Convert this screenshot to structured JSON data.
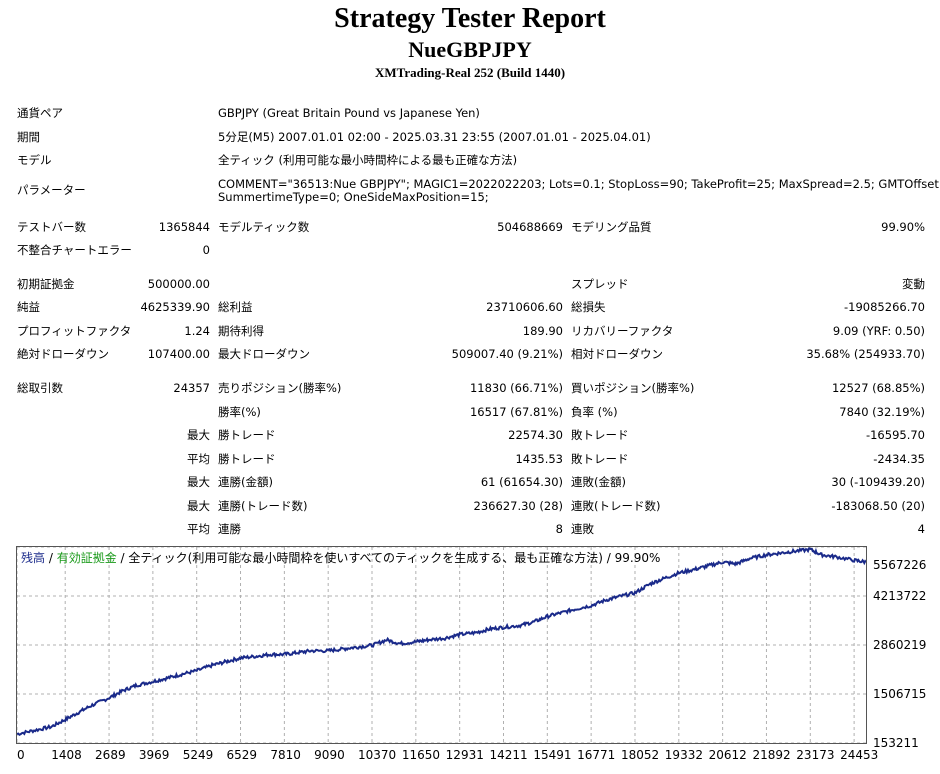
{
  "header": {
    "title": "Strategy Tester Report",
    "subtitle": "NueGBPJPY",
    "broker": "XMTrading-Real 252 (Build 1440)"
  },
  "info": {
    "pair_label": "通貨ペア",
    "pair_value": "GBPJPY (Great Britain Pound vs Japanese Yen)",
    "period_label": "期間",
    "period_value": "5分足(M5) 2007.01.01 02:00 - 2025.03.31 23:55 (2007.01.01 - 2025.04.01)",
    "model_label": "モデル",
    "model_value": "全ティック (利用可能な最小時間枠による最も正確な方法)",
    "params_label": "パラメーター",
    "params_line1": "COMMENT=\"36513:Nue GBPJPY\"; MAGIC1=2022022203; Lots=0.1; StopLoss=90; TakeProfit=25; MaxSpread=2.5; GMTOffset=2;",
    "params_line2": "SummertimeType=0; OneSideMaxPosition=15;"
  },
  "stats": {
    "bars_label": "テストバー数",
    "bars_value": "1365844",
    "ticks_label": "モデルティック数",
    "ticks_value": "504688669",
    "quality_label": "モデリング品質",
    "quality_value": "99.90%",
    "mismatch_label": "不整合チャートエラー",
    "mismatch_value": "0",
    "deposit_label": "初期証拠金",
    "deposit_value": "500000.00",
    "spread_label": "スプレッド",
    "spread_value": "変動",
    "net_label": "純益",
    "net_value": "4625339.90",
    "gross_profit_label": "総利益",
    "gross_profit_value": "23710606.60",
    "gross_loss_label": "総損失",
    "gross_loss_value": "-19085266.70",
    "pf_label": "プロフィットファクタ",
    "pf_value": "1.24",
    "expected_label": "期待利得",
    "expected_value": "189.90",
    "recovery_label": "リカバリーファクタ",
    "recovery_value": "9.09 (YRF: 0.50)",
    "abs_dd_label": "絶対ドローダウン",
    "abs_dd_value": "107400.00",
    "max_dd_label": "最大ドローダウン",
    "max_dd_value": "509007.40 (9.21%)",
    "rel_dd_label": "相対ドローダウン",
    "rel_dd_value": "35.68% (254933.70)",
    "total_trades_label": "総取引数",
    "total_trades_value": "24357",
    "short_label": "売りポジション(勝率%)",
    "short_value": "11830 (66.71%)",
    "long_label": "買いポジション(勝率%)",
    "long_value": "12527 (68.85%)",
    "winrate_label": "勝率(%)",
    "winrate_value": "16517 (67.81%)",
    "lossrate_label": "負率 (%)",
    "lossrate_value": "7840 (32.19%)",
    "max_label_1": "最大",
    "largest_win_label": "勝トレード",
    "largest_win_value": "22574.30",
    "largest_loss_label": "敗トレード",
    "largest_loss_value": "-16595.70",
    "avg_label_1": "平均",
    "avg_win_label": "勝トレード",
    "avg_win_value": "1435.53",
    "avg_loss_label": "敗トレード",
    "avg_loss_value": "-2434.35",
    "max_label_2": "最大",
    "cons_wins_amt_label": "連勝(金額)",
    "cons_wins_amt_value": "61 (61654.30)",
    "cons_loss_amt_label": "連敗(金額)",
    "cons_loss_amt_value": "30 (-109439.20)",
    "max_label_3": "最大",
    "cons_wins_cnt_label": "連勝(トレード数)",
    "cons_wins_cnt_value": "236627.30 (28)",
    "cons_loss_cnt_label": "連敗(トレード数)",
    "cons_loss_cnt_value": "-183068.50 (20)",
    "avg_label_2": "平均",
    "avg_cons_win_label": "連勝",
    "avg_cons_win_value": "8",
    "avg_cons_loss_label": "連敗",
    "avg_cons_loss_value": "4"
  },
  "chart_legend": {
    "balance": "残高",
    "sep1": " / ",
    "equity": "有効証拠金",
    "sep2": " / ",
    "rest": "全ティック(利用可能な最小時間枠を使いすべてのティックを生成する、最も正確な方法) / 99.90%"
  },
  "colors": {
    "balance_line": "#1a2a8a",
    "grid": "#b0b0b0"
  },
  "chart_data": {
    "type": "line",
    "title": "",
    "xlabel": "",
    "ylabel": "",
    "y_ticks": [
      153211,
      1506715,
      2860219,
      4213722,
      5567226
    ],
    "x_ticks": [
      0,
      1408,
      2689,
      3969,
      5249,
      6529,
      7810,
      9090,
      10370,
      11650,
      12931,
      14211,
      15491,
      16771,
      18052,
      19332,
      20612,
      21892,
      23173,
      24453
    ],
    "ylim": [
      153211,
      5567226
    ],
    "xlim": [
      0,
      24800
    ],
    "grid": true,
    "series": [
      {
        "values_x": [
          0,
          500,
          1000,
          1408,
          1800,
          2200,
          2689,
          3100,
          3500,
          3969,
          4400,
          4800,
          5249,
          5700,
          6100,
          6529,
          7000,
          7400,
          7810,
          8200,
          8600,
          9090,
          9500,
          9900,
          10370,
          10800,
          11200,
          11650,
          12000,
          12500,
          12931,
          13400,
          13800,
          14211,
          14700,
          15100,
          15491,
          15900,
          16300,
          16771,
          17200,
          17600,
          18052,
          18500,
          18900,
          19332,
          19800,
          20200,
          20612,
          21000,
          21400,
          21892,
          22300,
          22700,
          23173,
          23500,
          23900,
          24453,
          24800
        ],
        "values_y": [
          400000,
          500000,
          600000,
          800000,
          1000000,
          1200000,
          1400000,
          1600000,
          1750000,
          1850000,
          1950000,
          2050000,
          2150000,
          2300000,
          2400000,
          2500000,
          2550000,
          2600000,
          2600000,
          2650000,
          2700000,
          2700000,
          2750000,
          2800000,
          2850000,
          3000000,
          2900000,
          2950000,
          3000000,
          3050000,
          3150000,
          3200000,
          3300000,
          3350000,
          3400000,
          3500000,
          3650000,
          3750000,
          3850000,
          3950000,
          4100000,
          4200000,
          4300000,
          4550000,
          4700000,
          4850000,
          4950000,
          5050000,
          5150000,
          5100000,
          5250000,
          5350000,
          5400000,
          5450000,
          5500000,
          5350000,
          5300000,
          5200000,
          5150000
        ]
      }
    ]
  }
}
